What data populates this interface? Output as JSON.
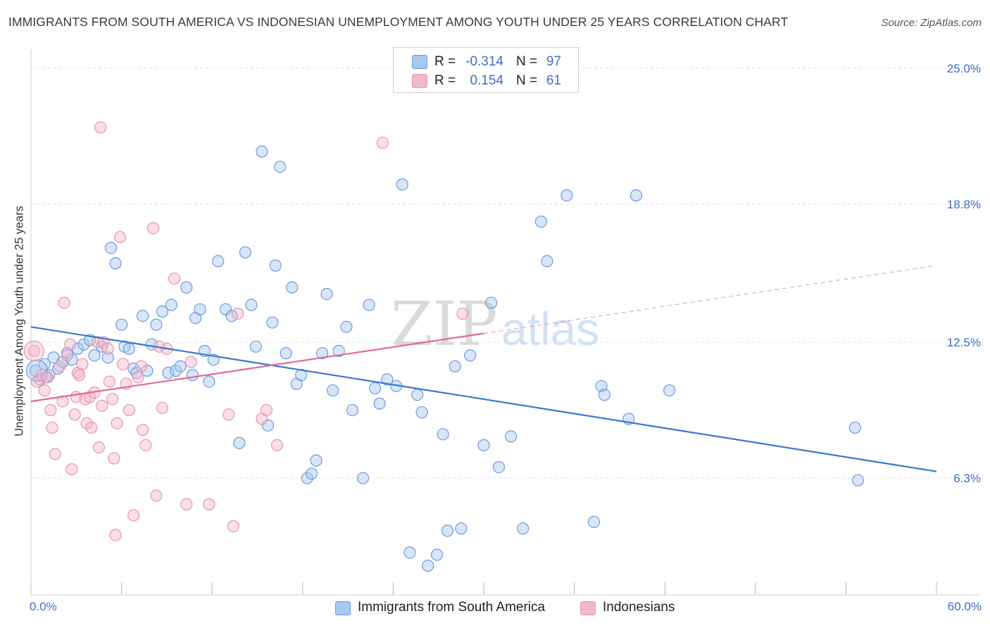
{
  "title": "IMMIGRANTS FROM SOUTH AMERICA VS INDONESIAN UNEMPLOYMENT AMONG YOUTH UNDER 25 YEARS CORRELATION CHART",
  "source": "Source: ZipAtlas.com",
  "watermark": {
    "zip": "ZIP",
    "atlas": "atlas"
  },
  "legend": [
    {
      "r_label": "R =",
      "r_value": "-0.314",
      "n_label": "N =",
      "n_value": "97",
      "color": "#a9c8f0"
    },
    {
      "r_label": "R =",
      "r_value": "0.154",
      "n_label": "N =",
      "n_value": "61",
      "color": "#f4b8cb"
    }
  ],
  "bottom_legend": [
    {
      "label": "Immigrants from South America",
      "color": "#a9c8f0"
    },
    {
      "label": "Indonesians",
      "color": "#f4b8cb"
    }
  ],
  "chart_data": {
    "type": "scatter",
    "title": "IMMIGRANTS FROM SOUTH AMERICA VS INDONESIAN UNEMPLOYMENT AMONG YOUTH UNDER 25 YEARS CORRELATION CHART",
    "xlabel": "",
    "ylabel": "Unemployment Among Youth under 25 years",
    "xlim": [
      0,
      60
    ],
    "ylim": [
      0,
      25
    ],
    "x_tick_labels": [
      "0.0%",
      "60.0%"
    ],
    "y_ticks": [
      6.3,
      12.5,
      18.8,
      25.0
    ],
    "y_tick_labels": [
      "6.3%",
      "12.5%",
      "18.8%",
      "25.0%"
    ],
    "grid": "horizontal dashed",
    "series": [
      {
        "name": "Immigrants from South America",
        "color": "#6b9be0",
        "fill": "#a9c8f0",
        "trend": {
          "x": [
            0,
            60
          ],
          "y": [
            13.2,
            6.6
          ],
          "color": "#3a78d0"
        },
        "points": [
          [
            0.3,
            11.2
          ],
          [
            0.6,
            10.8
          ],
          [
            0.9,
            11.5
          ],
          [
            1.2,
            11.0
          ],
          [
            1.5,
            11.8
          ],
          [
            1.8,
            11.3
          ],
          [
            2.1,
            11.6
          ],
          [
            2.4,
            12.0
          ],
          [
            2.7,
            11.7
          ],
          [
            3.1,
            12.2
          ],
          [
            3.5,
            12.4
          ],
          [
            3.9,
            12.6
          ],
          [
            4.2,
            11.9
          ],
          [
            4.7,
            12.3
          ],
          [
            5.1,
            11.8
          ],
          [
            5.3,
            16.8
          ],
          [
            5.6,
            16.1
          ],
          [
            6.0,
            13.3
          ],
          [
            6.2,
            12.3
          ],
          [
            6.5,
            12.2
          ],
          [
            6.8,
            11.3
          ],
          [
            7.0,
            11.1
          ],
          [
            7.4,
            13.7
          ],
          [
            7.7,
            11.2
          ],
          [
            8.0,
            12.4
          ],
          [
            8.3,
            13.3
          ],
          [
            8.7,
            13.9
          ],
          [
            9.1,
            11.1
          ],
          [
            9.3,
            14.2
          ],
          [
            9.6,
            11.2
          ],
          [
            9.9,
            11.4
          ],
          [
            10.3,
            15.0
          ],
          [
            10.7,
            11.0
          ],
          [
            10.9,
            13.6
          ],
          [
            11.2,
            14.0
          ],
          [
            11.5,
            12.1
          ],
          [
            11.8,
            10.7
          ],
          [
            12.1,
            11.7
          ],
          [
            12.4,
            16.2
          ],
          [
            12.9,
            14.0
          ],
          [
            13.3,
            13.7
          ],
          [
            13.8,
            7.9
          ],
          [
            14.2,
            16.6
          ],
          [
            14.6,
            14.2
          ],
          [
            14.9,
            12.3
          ],
          [
            15.3,
            21.2
          ],
          [
            15.7,
            8.7
          ],
          [
            16.0,
            13.4
          ],
          [
            16.2,
            16.0
          ],
          [
            16.5,
            20.5
          ],
          [
            16.9,
            12.0
          ],
          [
            17.3,
            15.0
          ],
          [
            17.6,
            10.6
          ],
          [
            17.9,
            11.0
          ],
          [
            18.3,
            6.3
          ],
          [
            18.6,
            6.5
          ],
          [
            18.9,
            7.1
          ],
          [
            19.3,
            12.0
          ],
          [
            19.6,
            14.7
          ],
          [
            20.0,
            10.3
          ],
          [
            20.4,
            12.1
          ],
          [
            20.9,
            13.2
          ],
          [
            21.3,
            9.4
          ],
          [
            22.0,
            6.3
          ],
          [
            22.4,
            14.2
          ],
          [
            22.8,
            10.4
          ],
          [
            23.1,
            9.7
          ],
          [
            23.6,
            10.8
          ],
          [
            24.2,
            10.5
          ],
          [
            24.6,
            19.7
          ],
          [
            25.1,
            2.9
          ],
          [
            25.6,
            10.1
          ],
          [
            25.9,
            9.3
          ],
          [
            26.3,
            2.3
          ],
          [
            26.9,
            2.8
          ],
          [
            27.3,
            8.3
          ],
          [
            27.6,
            3.9
          ],
          [
            28.1,
            11.4
          ],
          [
            28.5,
            4.0
          ],
          [
            29.1,
            11.9
          ],
          [
            30.0,
            7.8
          ],
          [
            30.5,
            14.3
          ],
          [
            31.0,
            6.8
          ],
          [
            31.8,
            8.2
          ],
          [
            32.6,
            4.0
          ],
          [
            33.8,
            18.0
          ],
          [
            34.2,
            16.2
          ],
          [
            35.5,
            19.2
          ],
          [
            37.3,
            4.3
          ],
          [
            37.8,
            10.5
          ],
          [
            38.0,
            10.1
          ],
          [
            39.6,
            9.0
          ],
          [
            40.1,
            19.2
          ],
          [
            42.3,
            10.3
          ],
          [
            54.6,
            8.6
          ],
          [
            54.8,
            6.2
          ],
          [
            1.0,
            10.9
          ]
        ]
      },
      {
        "name": "Indonesians",
        "color": "#e893ad",
        "fill": "#f4b8cb",
        "trend": {
          "x": [
            0,
            30
          ],
          "y": [
            9.8,
            12.9
          ],
          "color": "#e06a94",
          "dashed_extension": {
            "x": [
              30,
              60
            ],
            "y": [
              12.9,
              16.0
            ]
          }
        },
        "points": [
          [
            0.2,
            12.1
          ],
          [
            0.4,
            10.7
          ],
          [
            0.7,
            11.0
          ],
          [
            0.9,
            10.3
          ],
          [
            1.1,
            10.9
          ],
          [
            1.3,
            9.4
          ],
          [
            1.4,
            8.6
          ],
          [
            1.6,
            7.4
          ],
          [
            1.9,
            11.4
          ],
          [
            2.1,
            9.8
          ],
          [
            2.2,
            14.3
          ],
          [
            2.4,
            11.9
          ],
          [
            2.6,
            12.4
          ],
          [
            2.7,
            6.7
          ],
          [
            2.9,
            9.2
          ],
          [
            3.0,
            10.0
          ],
          [
            3.1,
            11.1
          ],
          [
            3.2,
            11.0
          ],
          [
            3.4,
            11.5
          ],
          [
            3.6,
            9.9
          ],
          [
            3.7,
            8.8
          ],
          [
            3.9,
            10.0
          ],
          [
            4.0,
            8.6
          ],
          [
            4.2,
            10.2
          ],
          [
            4.4,
            12.5
          ],
          [
            4.5,
            7.7
          ],
          [
            4.6,
            22.3
          ],
          [
            4.7,
            9.6
          ],
          [
            4.8,
            12.5
          ],
          [
            5.1,
            12.2
          ],
          [
            5.2,
            10.7
          ],
          [
            5.4,
            9.9
          ],
          [
            5.5,
            7.2
          ],
          [
            5.6,
            3.7
          ],
          [
            5.7,
            8.8
          ],
          [
            5.9,
            17.3
          ],
          [
            6.1,
            11.5
          ],
          [
            6.3,
            10.6
          ],
          [
            6.5,
            9.4
          ],
          [
            6.8,
            4.6
          ],
          [
            7.1,
            10.9
          ],
          [
            7.3,
            11.4
          ],
          [
            7.4,
            8.5
          ],
          [
            7.6,
            7.8
          ],
          [
            8.1,
            17.7
          ],
          [
            8.3,
            5.5
          ],
          [
            8.5,
            12.3
          ],
          [
            8.7,
            9.5
          ],
          [
            9.0,
            12.2
          ],
          [
            9.5,
            15.4
          ],
          [
            10.3,
            5.1
          ],
          [
            10.6,
            11.6
          ],
          [
            11.8,
            5.1
          ],
          [
            13.1,
            9.2
          ],
          [
            13.4,
            4.1
          ],
          [
            13.7,
            13.8
          ],
          [
            15.3,
            9.0
          ],
          [
            15.6,
            9.4
          ],
          [
            16.3,
            7.8
          ],
          [
            23.3,
            21.6
          ],
          [
            28.6,
            13.8
          ]
        ]
      }
    ]
  }
}
